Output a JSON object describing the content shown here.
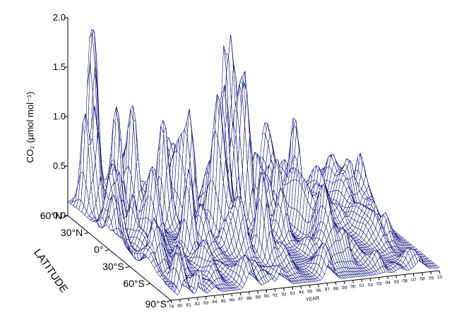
{
  "chart_data": {
    "type": "surface",
    "ylabel": "CO₂ (µmol mol⁻¹)",
    "xlabel": "YEAR",
    "depth_label": "LATITUDE",
    "zlim": [
      0.0,
      2.0
    ],
    "z_ticks": [
      "0.0",
      "0.5",
      "1.0",
      "1.5",
      "2.0"
    ],
    "latitude_ticks": [
      "60°N",
      "30°N",
      "0°",
      "30°S",
      "60°S",
      "90°S"
    ],
    "year_ticks": [
      "79",
      "80",
      "81",
      "82",
      "83",
      "84",
      "85",
      "86",
      "87",
      "88",
      "89",
      "90",
      "91",
      "92",
      "93",
      "94",
      "95",
      "96",
      "97",
      "98",
      "99",
      "00",
      "01",
      "02",
      "03",
      "04",
      "05",
      "06",
      "07",
      "08",
      "09",
      "10"
    ],
    "mesh_color": "#0b0b7a",
    "peaks": [
      {
        "year": 1981.9,
        "latitude": 60,
        "value": 1.78
      },
      {
        "year": 1981.4,
        "latitude": 55,
        "value": 1.45
      },
      {
        "year": 1997.6,
        "latitude": 55,
        "value": 1.52
      },
      {
        "year": 1997.0,
        "latitude": 60,
        "value": 1.4
      },
      {
        "year": 1998.4,
        "latitude": 50,
        "value": 1.3
      },
      {
        "year": 1979.8,
        "latitude": 45,
        "value": 1.05
      },
      {
        "year": 1980.6,
        "latitude": 40,
        "value": 1.1
      },
      {
        "year": 1983.1,
        "latitude": 40,
        "value": 1.15
      },
      {
        "year": 1984.1,
        "latitude": 30,
        "value": 1.08
      },
      {
        "year": 1987.6,
        "latitude": 30,
        "value": 1.0
      },
      {
        "year": 1989.6,
        "latitude": 15,
        "value": 1.07
      },
      {
        "year": 1993.2,
        "latitude": 10,
        "value": 1.1
      },
      {
        "year": 1994.2,
        "latitude": 10,
        "value": 1.02
      },
      {
        "year": 1995.6,
        "latitude": 8,
        "value": 1.08
      },
      {
        "year": 1999.6,
        "latitude": 15,
        "value": 0.62
      },
      {
        "year": 2001.2,
        "latitude": 5,
        "value": 0.72
      }
    ]
  }
}
